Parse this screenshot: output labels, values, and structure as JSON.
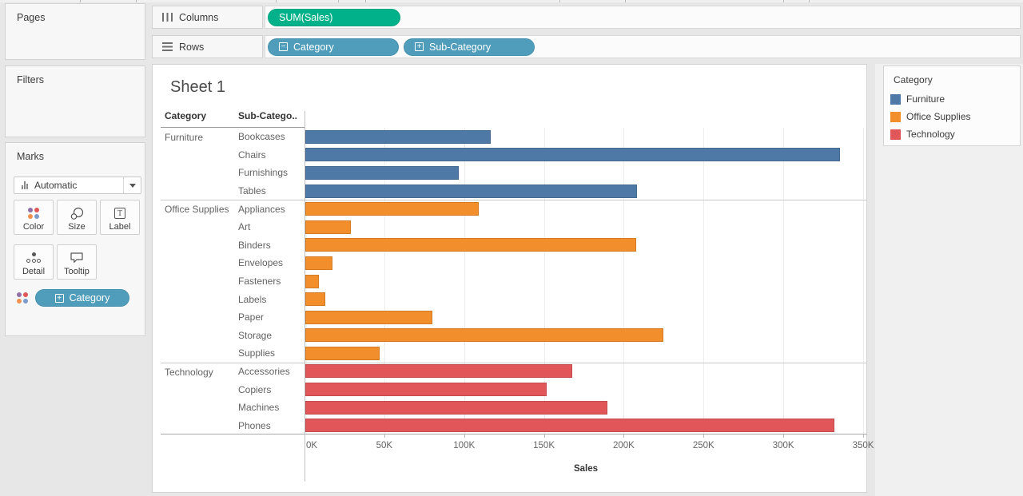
{
  "panels": {
    "pages_title": "Pages",
    "filters_title": "Filters",
    "marks": {
      "title": "Marks",
      "mark_type": "Automatic",
      "buttons": [
        {
          "label": "Color",
          "icon": "color-dots-icon"
        },
        {
          "label": "Size",
          "icon": "size-circles-icon"
        },
        {
          "label": "Label",
          "icon": "label-t-icon"
        },
        {
          "label": "Detail",
          "icon": "detail-dots-icon"
        },
        {
          "label": "Tooltip",
          "icon": "tooltip-bubble-icon"
        }
      ],
      "pill": {
        "label": "Category",
        "box_icon": "plus",
        "color": "#4f9dbb"
      }
    }
  },
  "shelves": {
    "columns_label": "Columns",
    "rows_label": "Rows",
    "columns_pills": [
      {
        "label": "SUM(Sales)",
        "type": "measure",
        "color": "#00b189",
        "box_icon": "none"
      }
    ],
    "rows_pills": [
      {
        "label": "Category",
        "type": "dimension",
        "color": "#4f9dbb",
        "box_icon": "minus"
      },
      {
        "label": "Sub-Category",
        "type": "dimension",
        "color": "#4f9dbb",
        "box_icon": "plus"
      }
    ]
  },
  "sheet": {
    "title": "Sheet 1"
  },
  "legend": {
    "title": "Category",
    "items": [
      {
        "label": "Furniture",
        "color": "#4e79a7"
      },
      {
        "label": "Office Supplies",
        "color": "#f28e2b"
      },
      {
        "label": "Technology",
        "color": "#e15759"
      }
    ]
  },
  "chart_data": {
    "type": "bar",
    "orientation": "horizontal",
    "title": "Sheet 1",
    "row_header_columns": [
      "Category",
      "Sub-Catego.."
    ],
    "xlabel": "Sales",
    "x_ticks": [
      "0K",
      "50K",
      "100K",
      "150K",
      "200K",
      "250K",
      "300K",
      "350K"
    ],
    "x_tick_values": [
      0,
      50000,
      100000,
      150000,
      200000,
      250000,
      300000,
      350000
    ],
    "xlim": [
      0,
      352500
    ],
    "grid": true,
    "legend_position": "right",
    "groups": [
      {
        "category": "Furniture",
        "color": "#4e79a7",
        "rows": [
          {
            "label": "Bookcases",
            "value": 116000
          },
          {
            "label": "Chairs",
            "value": 335000
          },
          {
            "label": "Furnishings",
            "value": 96000
          },
          {
            "label": "Tables",
            "value": 208000
          }
        ]
      },
      {
        "category": "Office Supplies",
        "color": "#f28e2b",
        "rows": [
          {
            "label": "Appliances",
            "value": 108500
          },
          {
            "label": "Art",
            "value": 28500
          },
          {
            "label": "Binders",
            "value": 207500
          },
          {
            "label": "Envelopes",
            "value": 17000
          },
          {
            "label": "Fasteners",
            "value": 8500
          },
          {
            "label": "Labels",
            "value": 12500
          },
          {
            "label": "Paper",
            "value": 79500
          },
          {
            "label": "Storage",
            "value": 224500
          },
          {
            "label": "Supplies",
            "value": 46500
          }
        ]
      },
      {
        "category": "Technology",
        "color": "#e15759",
        "rows": [
          {
            "label": "Accessories",
            "value": 167000
          },
          {
            "label": "Copiers",
            "value": 151000
          },
          {
            "label": "Machines",
            "value": 189500
          },
          {
            "label": "Phones",
            "value": 331500
          }
        ]
      }
    ]
  }
}
